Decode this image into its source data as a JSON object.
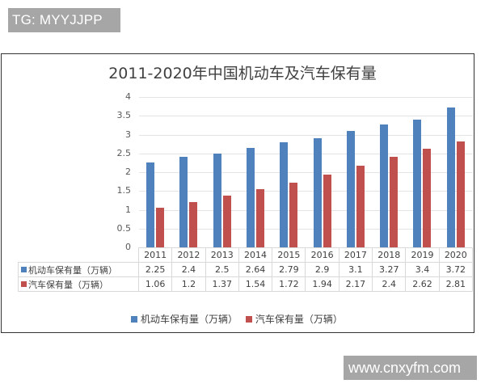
{
  "watermarks": {
    "top": "TG: MYYJJPP",
    "bottom": "www.cnxyfm.com"
  },
  "chart_data": {
    "type": "bar",
    "title": "2011-2020年中国机动车及汽车保有量",
    "categories": [
      "2011",
      "2012",
      "2013",
      "2014",
      "2015",
      "2016",
      "2017",
      "2018",
      "2019",
      "2020"
    ],
    "series": [
      {
        "name": "机动车保有量（万辆）",
        "color": "#4f81bd",
        "values": [
          2.25,
          2.4,
          2.5,
          2.64,
          2.79,
          2.9,
          3.1,
          3.27,
          3.4,
          3.72
        ],
        "labels": [
          "2.25",
          "2.4",
          "2.5",
          "2.64",
          "2.79",
          "2.9",
          "3.1",
          "3.27",
          "3.4",
          "3.72"
        ]
      },
      {
        "name": "汽车保有量（万辆）",
        "color": "#c0504d",
        "values": [
          1.06,
          1.2,
          1.37,
          1.54,
          1.72,
          1.94,
          2.17,
          2.4,
          2.62,
          2.81
        ],
        "labels": [
          "1.06",
          "1.2",
          "1.37",
          "1.54",
          "1.72",
          "1.94",
          "2.17",
          "2.4",
          "2.62",
          "2.81"
        ]
      }
    ],
    "yticks": [
      "0",
      "0.5",
      "1",
      "1.5",
      "2",
      "2.5",
      "3",
      "3.5",
      "4"
    ],
    "ylim": [
      0,
      4
    ],
    "xlabel": "",
    "ylabel": "",
    "grid": true,
    "legend_position": "bottom",
    "data_table": true
  }
}
